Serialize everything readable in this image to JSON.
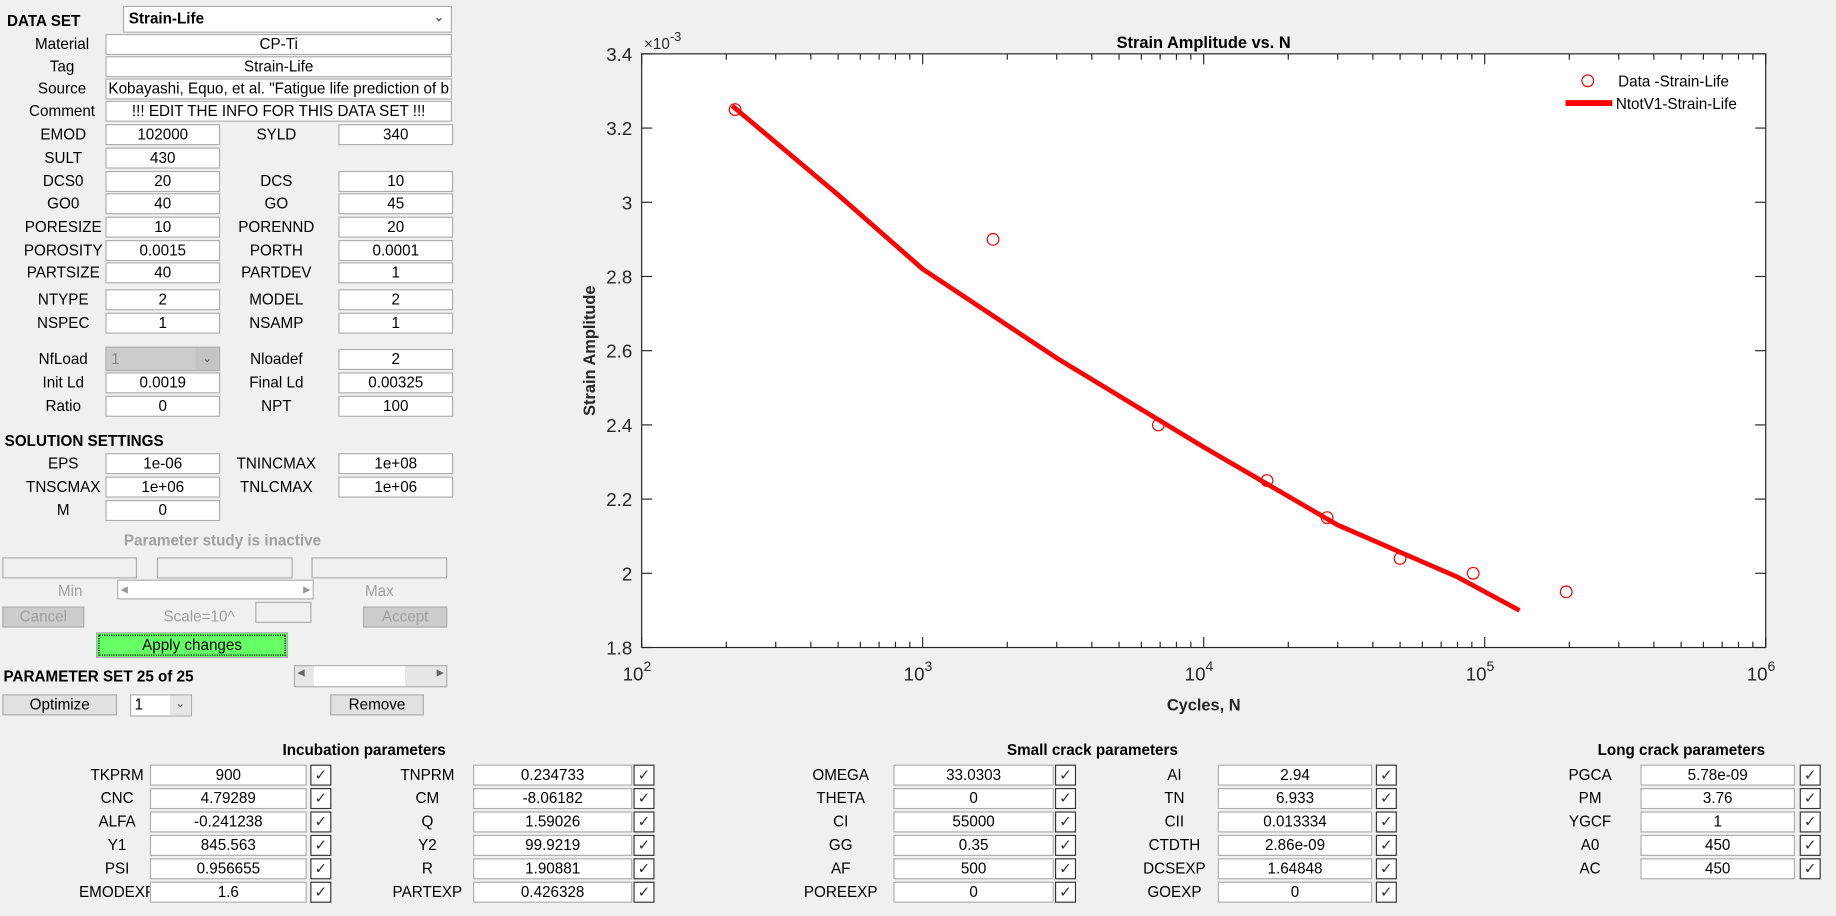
{
  "dataset": {
    "label": "DATA SET",
    "value": "Strain-Life"
  },
  "info": [
    {
      "label": "Material",
      "value": "CP-Ti"
    },
    {
      "label": "Tag",
      "value": "Strain-Life"
    },
    {
      "label": "Source",
      "value": "Kobayashi, Equo, et al. \"Fatigue life prediction of b"
    },
    {
      "label": "Comment",
      "value": "!!! EDIT THE INFO FOR THIS DATA SET !!!"
    }
  ],
  "main_params": [
    {
      "l": {
        "label": "EMOD",
        "value": "102000"
      },
      "r": {
        "label": "SYLD",
        "value": "340"
      }
    },
    {
      "l": {
        "label": "SULT",
        "value": "430"
      }
    },
    {
      "l": {
        "label": "DCS0",
        "value": "20"
      },
      "r": {
        "label": "DCS",
        "value": "10"
      }
    },
    {
      "l": {
        "label": "GO0",
        "value": "40"
      },
      "r": {
        "label": "GO",
        "value": "45"
      }
    },
    {
      "l": {
        "label": "PORESIZE",
        "value": "10"
      },
      "r": {
        "label": "PORENND",
        "value": "20"
      }
    },
    {
      "l": {
        "label": "POROSITY",
        "value": "0.0015"
      },
      "r": {
        "label": "PORTH",
        "value": "0.0001"
      }
    },
    {
      "l": {
        "label": "PARTSIZE",
        "value": "40"
      },
      "r": {
        "label": "PARTDEV",
        "value": "1"
      }
    },
    {
      "l": {
        "label": "NTYPE",
        "value": "2"
      },
      "r": {
        "label": "MODEL",
        "value": "2"
      }
    },
    {
      "l": {
        "label": "NSPEC",
        "value": "1"
      },
      "r": {
        "label": "NSAMP",
        "value": "1"
      }
    },
    {
      "l": {
        "label": "NfLoad",
        "value": "1",
        "dropdown": true
      },
      "r": {
        "label": "Nloadef",
        "value": "2"
      }
    },
    {
      "l": {
        "label": "Init Ld",
        "value": "0.0019"
      },
      "r": {
        "label": "Final Ld",
        "value": "0.00325"
      }
    },
    {
      "l": {
        "label": "Ratio",
        "value": "0"
      },
      "r": {
        "label": "NPT",
        "value": "100"
      }
    }
  ],
  "solution": {
    "title": "SOLUTION SETTINGS",
    "params": [
      {
        "l": {
          "label": "EPS",
          "value": "1e-06"
        },
        "r": {
          "label": "TNINCMAX",
          "value": "1e+08"
        }
      },
      {
        "l": {
          "label": "TNSCMAX",
          "value": "1e+06"
        },
        "r": {
          "label": "TNLCMAX",
          "value": "1e+06"
        }
      },
      {
        "l": {
          "label": "M",
          "value": "0"
        }
      }
    ]
  },
  "param_study": {
    "status": "Parameter study is inactive",
    "min_label": "Min",
    "max_label": "Max",
    "scale_label": "Scale=10^",
    "cancel": "Cancel",
    "accept": "Accept"
  },
  "apply_label": "Apply changes",
  "param_set": {
    "label": "PARAMETER SET 25 of 25",
    "current": 25,
    "total": 25,
    "optimize": "Optimize",
    "optimize_choice": "1",
    "remove": "Remove"
  },
  "groups": [
    {
      "title": "Incubation parameters",
      "params": [
        {
          "label": "TKPRM",
          "value": "900",
          "checked": true
        },
        {
          "label": "CNC",
          "value": "4.79289",
          "checked": true
        },
        {
          "label": "ALFA",
          "value": "-0.241238",
          "checked": true
        },
        {
          "label": "Y1",
          "value": "845.563",
          "checked": true
        },
        {
          "label": "PSI",
          "value": "0.956655",
          "checked": true
        },
        {
          "label": "EMODEXP",
          "value": "1.6",
          "checked": true
        },
        {
          "label": "TNPRM",
          "value": "0.234733",
          "checked": true
        },
        {
          "label": "CM",
          "value": "-8.06182",
          "checked": true
        },
        {
          "label": "Q",
          "value": "1.59026",
          "checked": true
        },
        {
          "label": "Y2",
          "value": "99.9219",
          "checked": true
        },
        {
          "label": "R",
          "value": "1.90881",
          "checked": true
        },
        {
          "label": "PARTEXP",
          "value": "0.426328",
          "checked": true
        }
      ]
    },
    {
      "title": "Small crack parameters",
      "params": [
        {
          "label": "OMEGA",
          "value": "33.0303",
          "checked": true
        },
        {
          "label": "THETA",
          "value": "0",
          "checked": true
        },
        {
          "label": "CI",
          "value": "55000",
          "checked": true
        },
        {
          "label": "GG",
          "value": "0.35",
          "checked": true
        },
        {
          "label": "AF",
          "value": "500",
          "checked": true
        },
        {
          "label": "POREEXP",
          "value": "0",
          "checked": true
        },
        {
          "label": "AI",
          "value": "2.94",
          "checked": true
        },
        {
          "label": "TN",
          "value": "6.933",
          "checked": true
        },
        {
          "label": "CII",
          "value": "0.013334",
          "checked": true
        },
        {
          "label": "CTDTH",
          "value": "2.86e-09",
          "checked": true
        },
        {
          "label": "DCSEXP",
          "value": "1.64848",
          "checked": true
        },
        {
          "label": "GOEXP",
          "value": "0",
          "checked": true
        }
      ]
    },
    {
      "title": "Long crack parameters",
      "params": [
        {
          "label": "PGCA",
          "value": "5.78e-09",
          "checked": true
        },
        {
          "label": "PM",
          "value": "3.76",
          "checked": true
        },
        {
          "label": "YGCF",
          "value": "1",
          "checked": true
        },
        {
          "label": "A0",
          "value": "450",
          "checked": true
        },
        {
          "label": "AC",
          "value": "450",
          "checked": true
        }
      ]
    }
  ],
  "chart_data": {
    "type": "scatter",
    "title": "Strain Amplitude vs. N",
    "xlabel": "Cycles, N",
    "ylabel": "Strain Amplitude",
    "y_multiplier": "×10",
    "y_multiplier_exp": "-3",
    "xscale": "log",
    "xlim": [
      100,
      1000000
    ],
    "ylim": [
      1.8,
      3.4
    ],
    "xticks": [
      {
        "base": "10",
        "exp": "2",
        "v": 100
      },
      {
        "base": "10",
        "exp": "3",
        "v": 1000
      },
      {
        "base": "10",
        "exp": "4",
        "v": 10000
      },
      {
        "base": "10",
        "exp": "5",
        "v": 100000
      },
      {
        "base": "10",
        "exp": "6",
        "v": 1000000
      }
    ],
    "yticks": [
      {
        "label": "1.8",
        "v": 1.8
      },
      {
        "label": "2",
        "v": 2.0
      },
      {
        "label": "2.2",
        "v": 2.2
      },
      {
        "label": "2.4",
        "v": 2.4
      },
      {
        "label": "2.6",
        "v": 2.6
      },
      {
        "label": "2.8",
        "v": 2.8
      },
      {
        "label": "3",
        "v": 3.0
      },
      {
        "label": "3.2",
        "v": 3.2
      },
      {
        "label": "3.4",
        "v": 3.4
      }
    ],
    "legend_position": "top-right",
    "series": [
      {
        "name": "Data -Strain-Life",
        "kind": "markers",
        "color": "#ff0000",
        "points": [
          [
            215,
            3.25
          ],
          [
            1780,
            2.9
          ],
          [
            6900,
            2.4
          ],
          [
            16800,
            2.25
          ],
          [
            27500,
            2.15
          ],
          [
            50000,
            2.04
          ],
          [
            91000,
            2.0
          ],
          [
            195000,
            1.95
          ]
        ]
      },
      {
        "name": "NtotV1-Strain-Life",
        "kind": "line",
        "color": "#ff0000",
        "points": [
          [
            210,
            3.26
          ],
          [
            500,
            3.02
          ],
          [
            1000,
            2.82
          ],
          [
            3000,
            2.58
          ],
          [
            10000,
            2.34
          ],
          [
            30000,
            2.13
          ],
          [
            80000,
            1.99
          ],
          [
            133000,
            1.9
          ]
        ]
      }
    ]
  }
}
